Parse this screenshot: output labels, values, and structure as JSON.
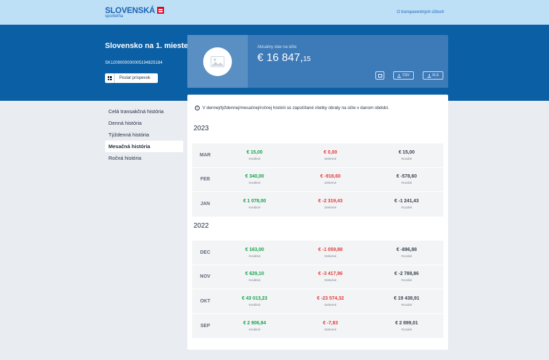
{
  "header": {
    "brand": "SLOVENSKÁ",
    "brand_sub": "sporiteľňa",
    "link": "O transparentných účtoch"
  },
  "account": {
    "title": "Slovensko na 1. mieste",
    "iban": "SK1209000000005194825184",
    "send_label": "Poslať príspevok"
  },
  "balance": {
    "label": "Aktuálny stav na účte",
    "amount_main": "€ 16 847,",
    "amount_cents": "15"
  },
  "exports": {
    "csv": "CSV",
    "xls": "XLS"
  },
  "sidebar": {
    "items": [
      {
        "label": "Celá transakčná história"
      },
      {
        "label": "Denná história"
      },
      {
        "label": "Týždenná história"
      },
      {
        "label": "Mesačná história"
      },
      {
        "label": "Ročná história"
      }
    ],
    "active_index": 3
  },
  "info_text": "V dennej/týždennej/mesačnej/ročnej histórii sú započítané všetky obraty na účte v danom období.",
  "labels": {
    "credit": "Kreditné",
    "debit": "Debetné",
    "diff": "Rozdiel"
  },
  "years": [
    {
      "year": "2023",
      "months": [
        {
          "month": "MAR",
          "credit": "€ 15,00",
          "debit": "€ 0,00",
          "diff": "€ 15,00"
        },
        {
          "month": "FEB",
          "credit": "€ 340,00",
          "debit": "€ -918,60",
          "diff": "€ -578,60"
        },
        {
          "month": "JAN",
          "credit": "€ 1 078,00",
          "debit": "€ -2 319,43",
          "diff": "€ -1 241,43"
        }
      ]
    },
    {
      "year": "2022",
      "months": [
        {
          "month": "DEC",
          "credit": "€ 163,00",
          "debit": "€ -1 059,88",
          "diff": "€ -896,88"
        },
        {
          "month": "NOV",
          "credit": "€ 629,10",
          "debit": "€ -3 417,96",
          "diff": "€ -2 788,86"
        },
        {
          "month": "OKT",
          "credit": "€ 43 013,23",
          "debit": "€ -23 574,32",
          "diff": "€ 19 438,91"
        },
        {
          "month": "SEP",
          "credit": "€ 2 906,84",
          "debit": "€ -7,83",
          "diff": "€ 2 899,01"
        }
      ]
    }
  ],
  "colors": {
    "hero": "#0a5fa5",
    "topbar": "#bde0f7",
    "credit": "#16a34a",
    "debit": "#e53935"
  },
  "icons": {
    "send": "qr-code-icon",
    "print": "printer-icon",
    "download": "download-icon",
    "info": "info-icon",
    "photo": "image-placeholder-icon"
  }
}
